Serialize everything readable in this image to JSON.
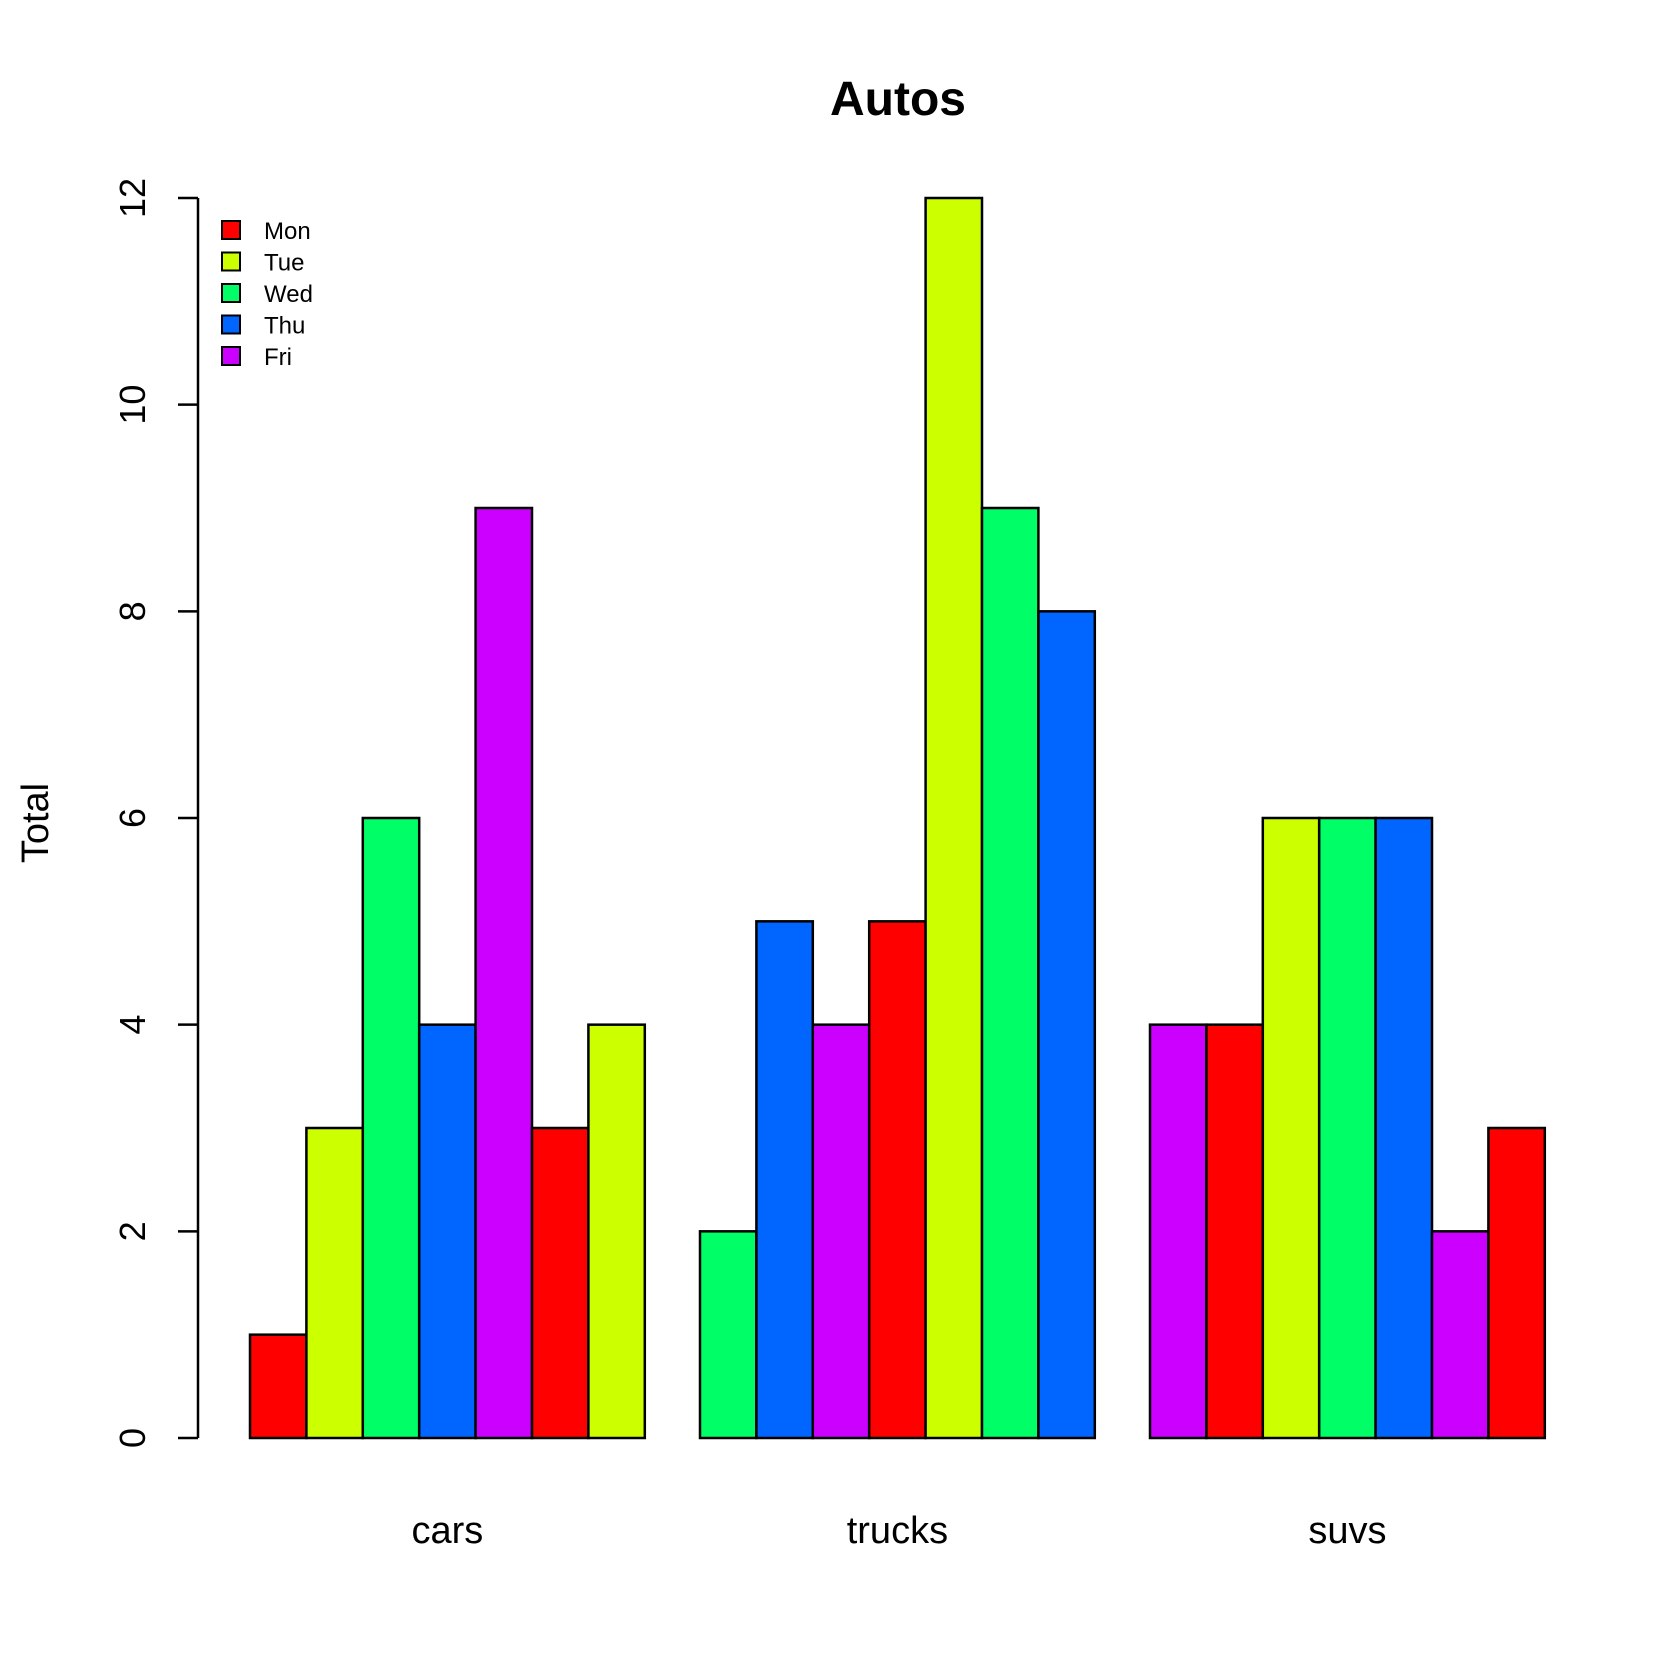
{
  "chart_data": {
    "type": "bar",
    "title": "Autos",
    "xlabel": "",
    "ylabel": "Total",
    "ylim": [
      0,
      12
    ],
    "yticks": [
      0,
      2,
      4,
      6,
      8,
      10,
      12
    ],
    "categories": [
      "cars",
      "trucks",
      "suvs"
    ],
    "bar_values": [
      [
        1,
        3,
        6,
        4,
        9,
        3,
        4
      ],
      [
        2,
        5,
        4,
        5,
        12,
        9,
        8
      ],
      [
        4,
        4,
        6,
        6,
        6,
        2,
        3
      ]
    ],
    "bar_colors": [
      [
        "#FF0000",
        "#CCFF00",
        "#00FF66",
        "#0066FF",
        "#CC00FF",
        "#FF0000",
        "#CCFF00"
      ],
      [
        "#00FF66",
        "#0066FF",
        "#CC00FF",
        "#FF0000",
        "#CCFF00",
        "#00FF66",
        "#0066FF"
      ],
      [
        "#CC00FF",
        "#FF0000",
        "#CCFF00",
        "#00FF66",
        "#0066FF",
        "#CC00FF",
        "#FF0000"
      ]
    ],
    "legend": {
      "position": "top-left",
      "entries": [
        {
          "name": "Mon",
          "color": "#FF0000"
        },
        {
          "name": "Tue",
          "color": "#CCFF00"
        },
        {
          "name": "Wed",
          "color": "#00FF66"
        },
        {
          "name": "Thu",
          "color": "#0066FF"
        },
        {
          "name": "Fri",
          "color": "#CC00FF"
        }
      ]
    },
    "grid": false
  }
}
